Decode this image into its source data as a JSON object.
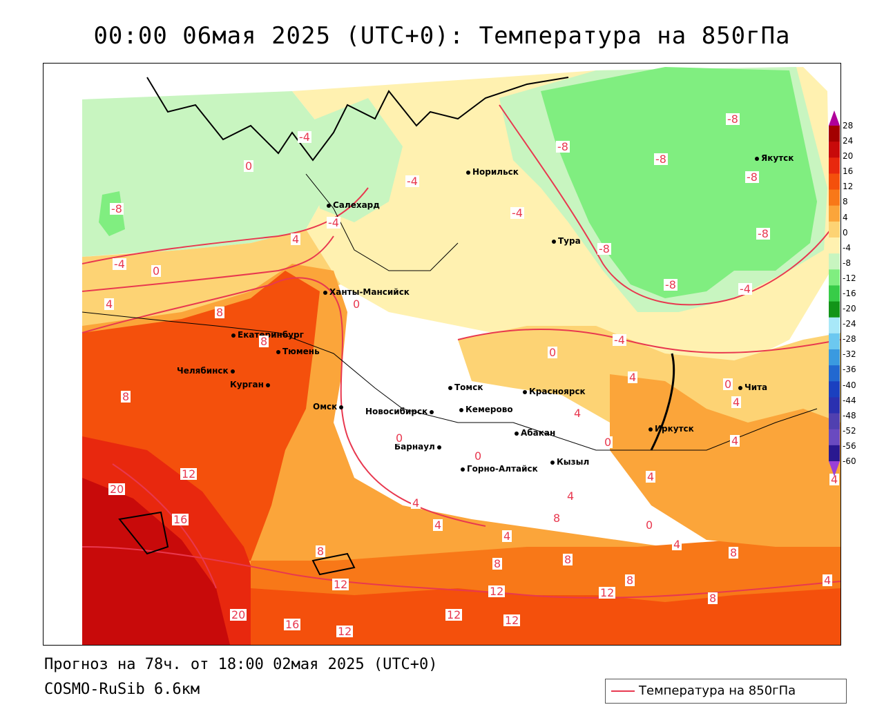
{
  "title": "00:00 06мая 2025 (UTC+0): Температура на 850гПа",
  "footer": {
    "forecast": "Прогноз на 78ч. от 18:00 02мая 2025 (UTC+0)",
    "model": "COSMO-RuSib 6.6км"
  },
  "legend": {
    "label": "Температура на 850гПа",
    "color": "#e8384f"
  },
  "cities": [
    {
      "name": "Норильск"
    },
    {
      "name": "Салехард"
    },
    {
      "name": "Якутск"
    },
    {
      "name": "Тура"
    },
    {
      "name": "Ханты-Мансийск"
    },
    {
      "name": "Екатеринбург"
    },
    {
      "name": "Тюмень"
    },
    {
      "name": "Челябинск"
    },
    {
      "name": "Курган"
    },
    {
      "name": "Омск"
    },
    {
      "name": "Новосибирск"
    },
    {
      "name": "Томск"
    },
    {
      "name": "Кемерово"
    },
    {
      "name": "Красноярск"
    },
    {
      "name": "Абакан"
    },
    {
      "name": "Барнаул"
    },
    {
      "name": "Горно-Алтайск"
    },
    {
      "name": "Кызыл"
    },
    {
      "name": "Иркутск"
    },
    {
      "name": "Чита"
    }
  ],
  "isotherm_labels": [
    "-8",
    "-8",
    "-8",
    "-8",
    "-8",
    "-8",
    "-8",
    "-8",
    "-4",
    "-4",
    "-4",
    "-4",
    "-4",
    "-4",
    "-4",
    "0",
    "0",
    "0",
    "0",
    "0",
    "0",
    "0",
    "0",
    "0",
    "4",
    "4",
    "4",
    "4",
    "4",
    "4",
    "4",
    "4",
    "4",
    "4",
    "4",
    "4",
    "4",
    "4",
    "8",
    "8",
    "8",
    "8",
    "8",
    "8",
    "8",
    "8",
    "8",
    "8",
    "12",
    "12",
    "12",
    "12",
    "12",
    "12",
    "12",
    "16",
    "16",
    "20",
    "20"
  ],
  "colorbar": {
    "ticks": [
      "28",
      "24",
      "20",
      "16",
      "12",
      "8",
      "4",
      "0",
      "-4",
      "-8",
      "-12",
      "-16",
      "-20",
      "-24",
      "-28",
      "-32",
      "-36",
      "-40",
      "-44",
      "-48",
      "-52",
      "-56",
      "-60"
    ],
    "colors": [
      "#b0009a",
      "#a30000",
      "#c80a0a",
      "#e8280e",
      "#f4500c",
      "#f87818",
      "#fba53a",
      "#fdd374",
      "#fff1b0",
      "#c8f5c0",
      "#80ee80",
      "#38cc48",
      "#129418",
      "#a8e8f8",
      "#6cc8f0",
      "#3a9ae0",
      "#2268d0",
      "#1a40c0",
      "#2a30b0",
      "#5040b0",
      "#6a4ac0",
      "#2a1890",
      "#9a40d8"
    ]
  }
}
